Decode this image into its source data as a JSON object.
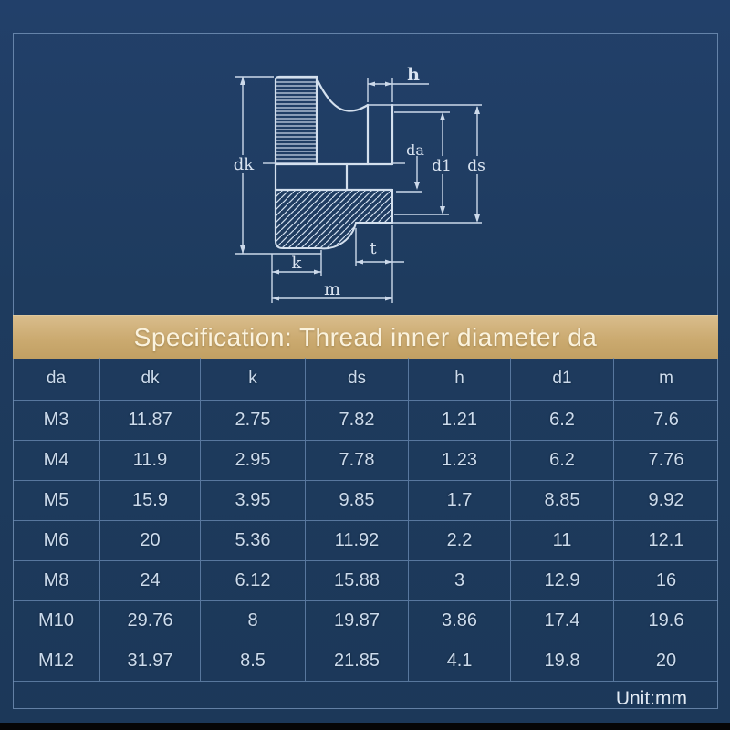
{
  "banner": {
    "title": "Specification: Thread inner diameter da"
  },
  "table": {
    "columns": [
      "da",
      "dk",
      "k",
      "ds",
      "h",
      "d1",
      "m"
    ],
    "rows": [
      [
        "M3",
        "11.87",
        "2.75",
        "7.82",
        "1.21",
        "6.2",
        "7.6"
      ],
      [
        "M4",
        "11.9",
        "2.95",
        "7.78",
        "1.23",
        "6.2",
        "7.76"
      ],
      [
        "M5",
        "15.9",
        "3.95",
        "9.85",
        "1.7",
        "8.85",
        "9.92"
      ],
      [
        "M6",
        "20",
        "5.36",
        "11.92",
        "2.2",
        "11",
        "12.1"
      ],
      [
        "M8",
        "24",
        "6.12",
        "15.88",
        "3",
        "12.9",
        "16"
      ],
      [
        "M10",
        "29.76",
        "8",
        "19.87",
        "3.86",
        "17.4",
        "19.6"
      ],
      [
        "M12",
        "31.97",
        "8.5",
        "21.85",
        "4.1",
        "19.8",
        "20"
      ]
    ],
    "footer": "Unit:mm"
  },
  "diagram": {
    "type": "technical-drawing",
    "subject": "knurled thumb nut half-section with dimension lines",
    "labels": {
      "dk": "dk",
      "h": "h",
      "da": "da",
      "d1": "d1",
      "ds": "ds",
      "t": "t",
      "k": "k",
      "m": "m"
    }
  },
  "colors": {
    "background_navy": "#1e3b5e",
    "banner_tan": "#c9a76d",
    "drawing_line": "#d4e0ee",
    "grid_line": "#6c8cb4",
    "table_text": "#ccdbec",
    "bottom_bar": "#060607"
  }
}
